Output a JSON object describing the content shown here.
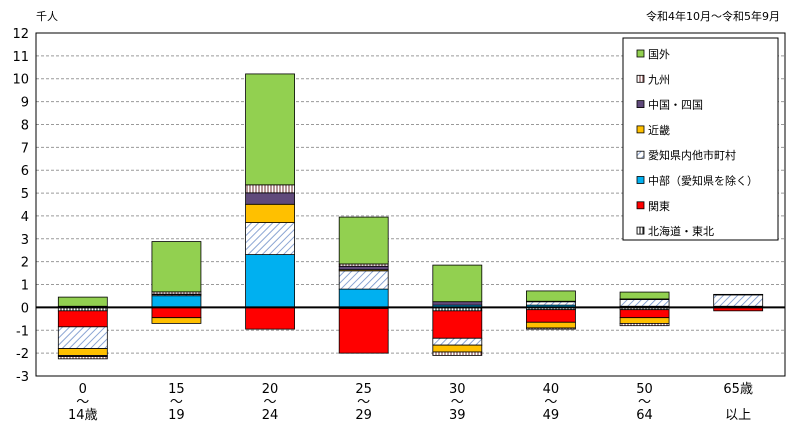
{
  "chart_data": {
    "type": "bar",
    "stacked": true,
    "unit_label": "千人",
    "period_label": "令和4年10月～令和5年9月",
    "ylim": [
      -3,
      12
    ],
    "yticks": [
      -3,
      -2,
      -1,
      0,
      1,
      2,
      3,
      4,
      5,
      6,
      7,
      8,
      9,
      10,
      11,
      12
    ],
    "grid": true,
    "legend_position": "top-right",
    "categories": [
      {
        "top": "0",
        "mid": "～",
        "bottom": "14歳"
      },
      {
        "top": "15",
        "mid": "～",
        "bottom": "19"
      },
      {
        "top": "20",
        "mid": "～",
        "bottom": "24"
      },
      {
        "top": "25",
        "mid": "～",
        "bottom": "29"
      },
      {
        "top": "30",
        "mid": "～",
        "bottom": "39"
      },
      {
        "top": "40",
        "mid": "～",
        "bottom": "49"
      },
      {
        "top": "50",
        "mid": "～",
        "bottom": "64"
      },
      {
        "top": "65歳",
        "mid": "",
        "bottom": "以上"
      }
    ],
    "series": [
      {
        "key": "hokkaido",
        "name": "北海道・東北",
        "color": "#ffffff",
        "pattern": "vstripe-black",
        "values": [
          -0.15,
          0.01,
          0.01,
          -0.05,
          -0.15,
          -0.1,
          -0.1,
          0
        ]
      },
      {
        "key": "kanto",
        "name": "関東",
        "color": "#ff0000",
        "values": [
          -0.7,
          -0.45,
          -0.95,
          -1.95,
          -1.2,
          -0.55,
          -0.35,
          -0.15
        ]
      },
      {
        "key": "chubu",
        "name": "中部（愛知県を除く）",
        "color": "#00b0f0",
        "values": [
          0.05,
          0.5,
          2.3,
          0.8,
          0.1,
          0.1,
          0.05,
          0.05
        ]
      },
      {
        "key": "aichi",
        "name": "愛知県内他市町村",
        "color": "#ffffff",
        "pattern": "hatch-blue",
        "values": [
          -0.95,
          0.05,
          1.4,
          0.8,
          -0.3,
          0.15,
          0.3,
          0.5
        ]
      },
      {
        "key": "kinki",
        "name": "近畿",
        "color": "#ffc000",
        "values": [
          -0.3,
          -0.25,
          0.8,
          0.05,
          -0.3,
          -0.25,
          -0.25,
          0
        ]
      },
      {
        "key": "chugoku",
        "name": "中国・四国",
        "color": "#604a7b",
        "values": [
          -0.05,
          0.02,
          0.5,
          0.15,
          0.15,
          0.02,
          0.02,
          0
        ]
      },
      {
        "key": "kyushu",
        "name": "九州",
        "color": "#ffffff",
        "pattern": "vstripe-maroon",
        "values": [
          -0.1,
          0.1,
          0.35,
          0.1,
          -0.15,
          -0.05,
          -0.1,
          0
        ]
      },
      {
        "key": "kokugai",
        "name": "国外",
        "color": "#92d050",
        "values": [
          0.4,
          2.2,
          4.85,
          2.05,
          1.6,
          0.45,
          0.3,
          0.02
        ]
      }
    ],
    "legend_order": [
      "kokugai",
      "kyushu",
      "chugoku",
      "kinki",
      "aichi",
      "chubu",
      "kanto",
      "hokkaido"
    ]
  }
}
